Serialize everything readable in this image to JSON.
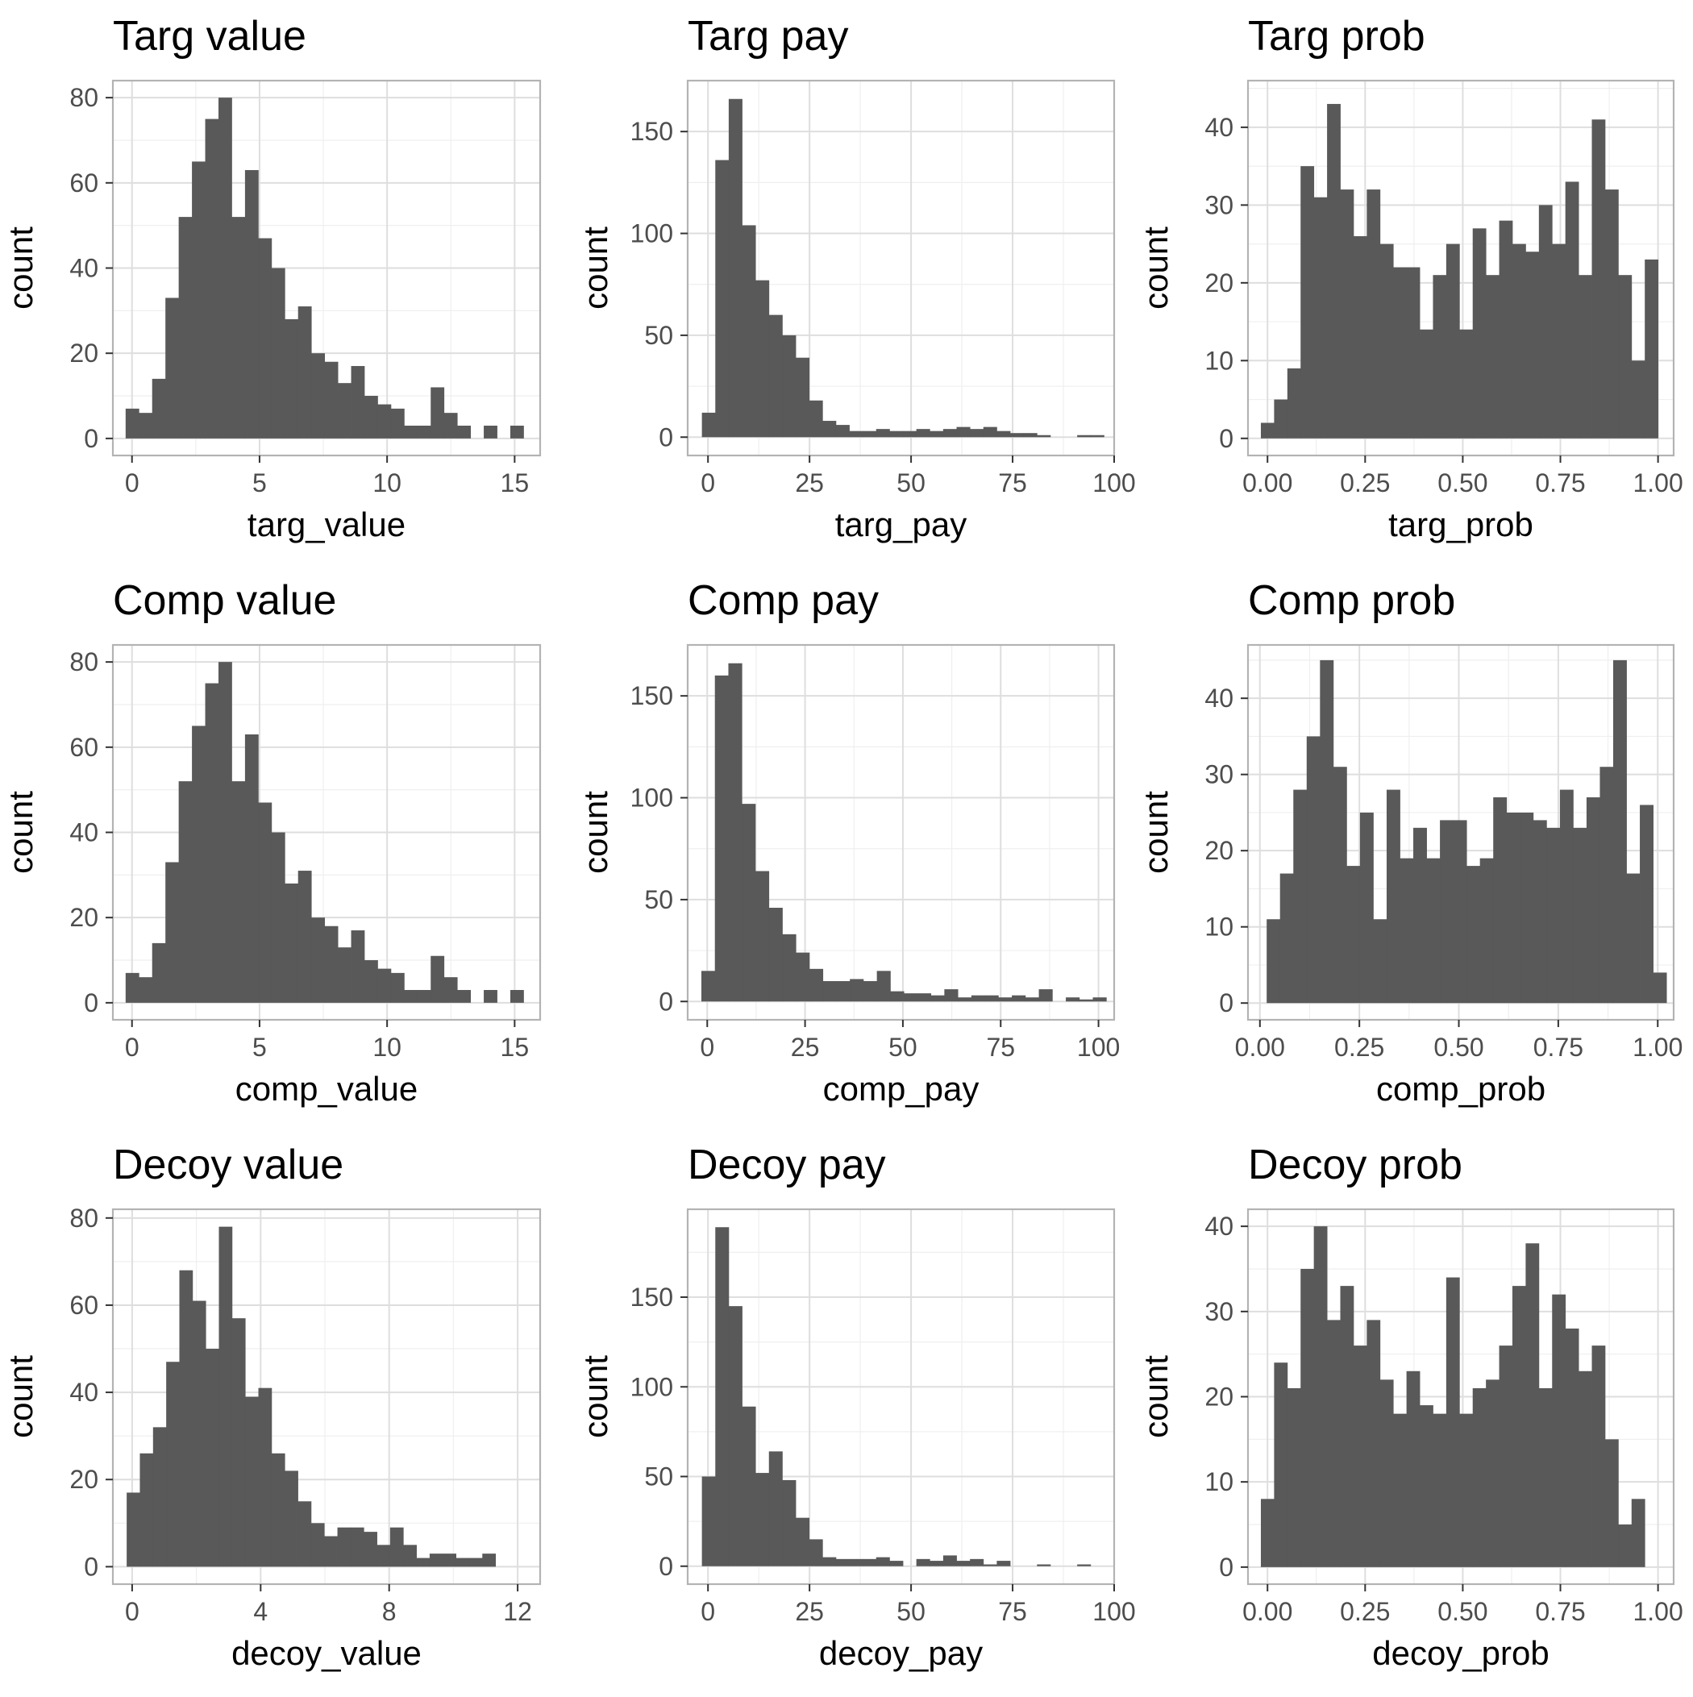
{
  "figure": {
    "style": {
      "bar_color": "#595959",
      "grid_major_color": "#dedede",
      "grid_minor_color": "#efefef",
      "panel_border_color": "#b3b3b3",
      "tick_label_color": "#4d4d4d",
      "title_color": "#000000"
    }
  },
  "chart_data": [
    {
      "type": "bar",
      "title": "Targ value",
      "xlabel": "targ_value",
      "ylabel": "count",
      "grid": true,
      "xlim": [
        -0.75,
        16
      ],
      "ylim": [
        -4,
        84
      ],
      "xticks": [
        0,
        5,
        10,
        15
      ],
      "xtick_labels": [
        "0",
        "5",
        "10",
        "15"
      ],
      "yticks": [
        0,
        20,
        40,
        60,
        80
      ],
      "ytick_labels": [
        "0",
        "20",
        "40",
        "60",
        "80"
      ],
      "bin_start": -0.25,
      "bin_width": 0.52,
      "values": [
        7,
        6,
        14,
        33,
        52,
        65,
        75,
        80,
        52,
        63,
        47,
        40,
        28,
        31,
        20,
        18,
        13,
        17,
        10,
        8,
        7,
        3,
        3,
        12,
        6,
        3,
        0,
        3,
        0,
        3
      ]
    },
    {
      "type": "bar",
      "title": "Targ pay",
      "xlabel": "targ_pay",
      "ylabel": "count",
      "grid": true,
      "xlim": [
        -5,
        100
      ],
      "ylim": [
        -9,
        175
      ],
      "xticks": [
        0,
        25,
        50,
        75,
        100
      ],
      "xtick_labels": [
        "0",
        "25",
        "50",
        "75",
        "100"
      ],
      "yticks": [
        0,
        50,
        100,
        150
      ],
      "ytick_labels": [
        "0",
        "50",
        "100",
        "150"
      ],
      "bin_start": -1.5,
      "bin_width": 3.3,
      "values": [
        12,
        136,
        166,
        104,
        77,
        60,
        50,
        39,
        18,
        8,
        6,
        3,
        3,
        4,
        3,
        3,
        4,
        3,
        4,
        5,
        4,
        5,
        3,
        2,
        2,
        1,
        0,
        0,
        1,
        1
      ]
    },
    {
      "type": "bar",
      "title": "Targ prob",
      "xlabel": "targ_prob",
      "ylabel": "count",
      "grid": true,
      "xlim": [
        -0.05,
        1.04
      ],
      "ylim": [
        -2.2,
        46
      ],
      "xticks": [
        0,
        0.25,
        0.5,
        0.75,
        1
      ],
      "xtick_labels": [
        "0.00",
        "0.25",
        "0.50",
        "0.75",
        "1.00"
      ],
      "yticks": [
        0,
        10,
        20,
        30,
        40
      ],
      "ytick_labels": [
        "0",
        "10",
        "20",
        "30",
        "40"
      ],
      "bin_start": -0.017,
      "bin_width": 0.0339,
      "values": [
        2,
        5,
        9,
        35,
        31,
        43,
        32,
        26,
        32,
        25,
        22,
        22,
        14,
        21,
        25,
        14,
        27,
        21,
        28,
        25,
        24,
        30,
        25,
        33,
        21,
        41,
        32,
        21,
        10,
        23
      ]
    },
    {
      "type": "bar",
      "title": "Comp value",
      "xlabel": "comp_value",
      "ylabel": "count",
      "grid": true,
      "xlim": [
        -0.75,
        16
      ],
      "ylim": [
        -4,
        84
      ],
      "xticks": [
        0,
        5,
        10,
        15
      ],
      "xtick_labels": [
        "0",
        "5",
        "10",
        "15"
      ],
      "yticks": [
        0,
        20,
        40,
        60,
        80
      ],
      "ytick_labels": [
        "0",
        "20",
        "40",
        "60",
        "80"
      ],
      "bin_start": -0.25,
      "bin_width": 0.52,
      "values": [
        7,
        6,
        14,
        33,
        52,
        65,
        75,
        80,
        52,
        63,
        47,
        40,
        28,
        31,
        20,
        18,
        13,
        17,
        10,
        8,
        7,
        3,
        3,
        11,
        6,
        3,
        0,
        3,
        0,
        3
      ]
    },
    {
      "type": "bar",
      "title": "Comp pay",
      "xlabel": "comp_pay",
      "ylabel": "count",
      "grid": true,
      "xlim": [
        -5,
        104
      ],
      "ylim": [
        -9,
        175
      ],
      "xticks": [
        0,
        25,
        50,
        75,
        100
      ],
      "xtick_labels": [
        "0",
        "25",
        "50",
        "75",
        "100"
      ],
      "yticks": [
        0,
        50,
        100,
        150
      ],
      "ytick_labels": [
        "0",
        "50",
        "100",
        "150"
      ],
      "bin_start": -1.5,
      "bin_width": 3.45,
      "values": [
        15,
        160,
        166,
        97,
        64,
        46,
        33,
        24,
        16,
        10,
        10,
        11,
        10,
        15,
        5,
        4,
        4,
        3,
        6,
        2,
        3,
        3,
        2,
        3,
        2,
        6,
        0,
        2,
        1,
        2
      ]
    },
    {
      "type": "bar",
      "title": "Comp prob",
      "xlabel": "comp_prob",
      "ylabel": "count",
      "grid": true,
      "xlim": [
        -0.03,
        1.04
      ],
      "ylim": [
        -2.2,
        47
      ],
      "xticks": [
        0,
        0.25,
        0.5,
        0.75,
        1
      ],
      "xtick_labels": [
        "0.00",
        "0.25",
        "0.50",
        "0.75",
        "1.00"
      ],
      "yticks": [
        0,
        10,
        20,
        30,
        40
      ],
      "ytick_labels": [
        "0",
        "10",
        "20",
        "30",
        "40"
      ],
      "bin_start": 0.017,
      "bin_width": 0.0335,
      "values": [
        11,
        17,
        28,
        35,
        45,
        31,
        18,
        25,
        11,
        28,
        19,
        23,
        19,
        24,
        24,
        18,
        19,
        27,
        25,
        25,
        24,
        23,
        28,
        23,
        27,
        31,
        45,
        17,
        26,
        4
      ]
    },
    {
      "type": "bar",
      "title": "Decoy value",
      "xlabel": "decoy_value",
      "ylabel": "count",
      "grid": true,
      "xlim": [
        -0.6,
        12.7
      ],
      "ylim": [
        -4,
        82
      ],
      "xticks": [
        0,
        4,
        8,
        12
      ],
      "xtick_labels": [
        "0",
        "4",
        "8",
        "12"
      ],
      "yticks": [
        0,
        20,
        40,
        60,
        80
      ],
      "ytick_labels": [
        "0",
        "20",
        "40",
        "60",
        "80"
      ],
      "bin_start": -0.17,
      "bin_width": 0.41,
      "values": [
        17,
        26,
        32,
        47,
        68,
        61,
        50,
        78,
        57,
        39,
        41,
        26,
        22,
        15,
        10,
        7,
        9,
        9,
        8,
        5,
        9,
        5,
        2,
        3,
        3,
        2,
        2,
        3,
        0,
        0
      ]
    },
    {
      "type": "bar",
      "title": "Decoy pay",
      "xlabel": "decoy_pay",
      "ylabel": "count",
      "grid": true,
      "xlim": [
        -5,
        100
      ],
      "ylim": [
        -10,
        199
      ],
      "xticks": [
        0,
        25,
        50,
        75,
        100
      ],
      "xtick_labels": [
        "0",
        "25",
        "50",
        "75",
        "100"
      ],
      "yticks": [
        0,
        50,
        100,
        150
      ],
      "ytick_labels": [
        "0",
        "50",
        "100",
        "150"
      ],
      "bin_start": -1.5,
      "bin_width": 3.3,
      "values": [
        50,
        189,
        145,
        89,
        52,
        64,
        48,
        27,
        15,
        5,
        4,
        4,
        4,
        5,
        3,
        0,
        4,
        3,
        6,
        3,
        4,
        1,
        3,
        0,
        0,
        1,
        0,
        0,
        1,
        0
      ]
    },
    {
      "type": "bar",
      "title": "Decoy prob",
      "xlabel": "decoy_prob",
      "ylabel": "count",
      "grid": true,
      "xlim": [
        -0.05,
        1.04
      ],
      "ylim": [
        -2,
        42
      ],
      "xticks": [
        0,
        0.25,
        0.5,
        0.75,
        1
      ],
      "xtick_labels": [
        "0.00",
        "0.25",
        "0.50",
        "0.75",
        "1.00"
      ],
      "yticks": [
        0,
        10,
        20,
        30,
        40
      ],
      "ytick_labels": [
        "0",
        "10",
        "20",
        "30",
        "40"
      ],
      "bin_start": -0.017,
      "bin_width": 0.0339,
      "values": [
        8,
        24,
        21,
        35,
        40,
        29,
        33,
        26,
        29,
        22,
        18,
        23,
        19,
        18,
        34,
        18,
        21,
        22,
        26,
        33,
        38,
        21,
        32,
        28,
        23,
        26,
        15,
        5,
        8,
        0
      ]
    }
  ]
}
